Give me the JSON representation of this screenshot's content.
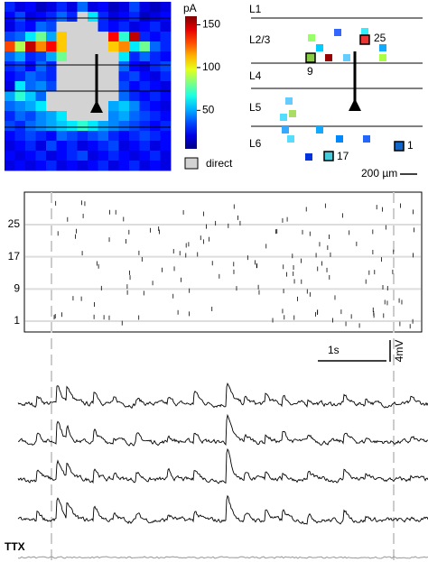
{
  "heatmap": {
    "unit": "pA",
    "legend": "direct",
    "clim": [
      5,
      160
    ],
    "colorbar_ticks": [
      50,
      100,
      150
    ],
    "values": [
      [
        30,
        20,
        25,
        15,
        20,
        30,
        20,
        40,
        20,
        25,
        15,
        20,
        35,
        20,
        15,
        20
      ],
      [
        25,
        35,
        20,
        25,
        30,
        40,
        30,
        null,
        60,
        30,
        20,
        25,
        30,
        15,
        20,
        25
      ],
      [
        20,
        30,
        25,
        40,
        35,
        null,
        null,
        null,
        null,
        30,
        25,
        30,
        20,
        25,
        30,
        20
      ],
      [
        35,
        40,
        60,
        80,
        50,
        110,
        null,
        null,
        null,
        null,
        140,
        70,
        150,
        30,
        25,
        30
      ],
      [
        130,
        90,
        150,
        120,
        140,
        110,
        null,
        null,
        null,
        null,
        110,
        120,
        60,
        80,
        40,
        30
      ],
      [
        40,
        50,
        30,
        35,
        50,
        80,
        null,
        null,
        null,
        null,
        null,
        60,
        30,
        40,
        30,
        25
      ],
      [
        30,
        35,
        25,
        40,
        30,
        null,
        null,
        null,
        null,
        null,
        null,
        40,
        25,
        20,
        30,
        35
      ],
      [
        25,
        30,
        40,
        35,
        30,
        null,
        null,
        null,
        null,
        null,
        null,
        30,
        35,
        25,
        20,
        30
      ],
      [
        20,
        60,
        40,
        45,
        35,
        null,
        null,
        null,
        null,
        null,
        null,
        35,
        25,
        30,
        25,
        20
      ],
      [
        50,
        70,
        55,
        40,
        null,
        null,
        null,
        null,
        null,
        null,
        null,
        40,
        30,
        25,
        30,
        25
      ],
      [
        40,
        45,
        50,
        60,
        null,
        null,
        null,
        null,
        null,
        null,
        50,
        55,
        45,
        30,
        25,
        20
      ],
      [
        30,
        40,
        35,
        45,
        50,
        60,
        null,
        null,
        null,
        null,
        45,
        50,
        40,
        35,
        30,
        25
      ],
      [
        35,
        30,
        40,
        45,
        50,
        55,
        60,
        70,
        60,
        50,
        45,
        40,
        35,
        30,
        25,
        30
      ],
      [
        25,
        30,
        35,
        30,
        25,
        40,
        35,
        30,
        35,
        40,
        30,
        25,
        30,
        35,
        30,
        25
      ],
      [
        20,
        25,
        30,
        20,
        35,
        25,
        30,
        20,
        25,
        30,
        35,
        20,
        25,
        30,
        20,
        25
      ],
      [
        25,
        20,
        25,
        30,
        20,
        25,
        30,
        35,
        20,
        25,
        30,
        25,
        20,
        25,
        30,
        20
      ],
      [
        20,
        25,
        20,
        25,
        30,
        20,
        25,
        20,
        25,
        30,
        20,
        25,
        30,
        20,
        25,
        20
      ]
    ]
  },
  "layers": {
    "labels": [
      "L1",
      "L2/3",
      "L4",
      "L5",
      "L6"
    ],
    "cells": [
      "25",
      "9",
      "17",
      "1"
    ],
    "scale_bar": "200 µm"
  },
  "raster": {
    "yticks": [
      1,
      9,
      17,
      25
    ]
  },
  "traces": {
    "time_scale": "1s",
    "voltage_scale": "4mV",
    "control": "TTX"
  }
}
